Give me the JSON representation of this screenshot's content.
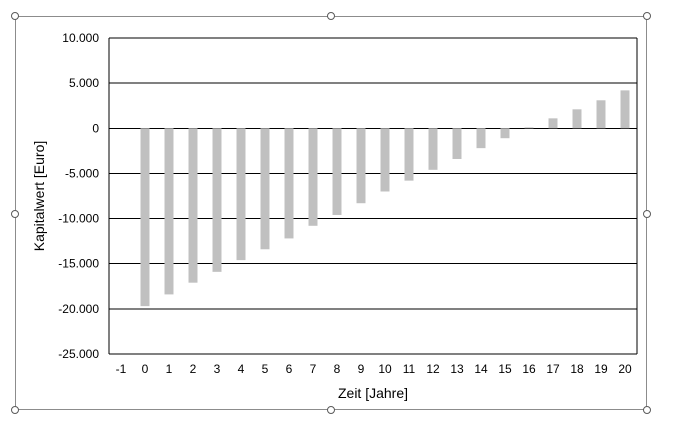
{
  "chart_data": {
    "type": "bar",
    "title": "",
    "xlabel": "Zeit [Jahre]",
    "ylabel": "Kapitalwert [Euro]",
    "ylim": [
      -25000,
      10000
    ],
    "ytick_values": [
      10000,
      5000,
      0,
      -5000,
      -10000,
      -15000,
      -20000,
      -25000
    ],
    "ytick_labels": [
      "10.000",
      "5.000",
      "0",
      "-5.000",
      "-10.000",
      "-15.000",
      "-20.000",
      "-25.000"
    ],
    "categories": [
      "-1",
      "0",
      "1",
      "2",
      "3",
      "4",
      "5",
      "6",
      "7",
      "8",
      "9",
      "10",
      "11",
      "12",
      "13",
      "14",
      "15",
      "16",
      "17",
      "18",
      "19",
      "20"
    ],
    "values": [
      0,
      -19700,
      -18400,
      -17100,
      -15900,
      -14600,
      -13400,
      -12200,
      -10800,
      -9600,
      -8300,
      -7000,
      -5800,
      -4600,
      -3400,
      -2200,
      -1100,
      100,
      1100,
      2100,
      3100,
      4200
    ],
    "bar_color": "#c0c0c0",
    "grid": true,
    "legend": "none"
  }
}
